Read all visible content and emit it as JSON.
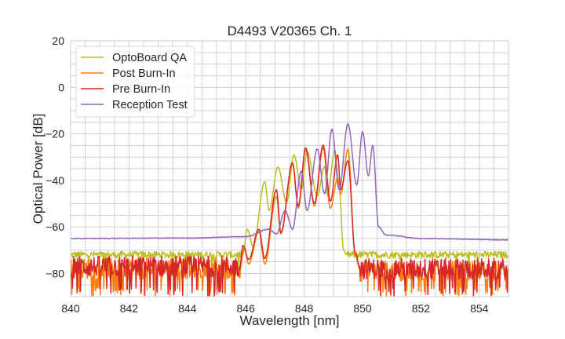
{
  "chart_data": {
    "type": "line",
    "title": "D4493 V20365 Ch. 1",
    "xlabel": "Wavelength [nm]",
    "ylabel": "Optical Power [dB]",
    "xlim": [
      840,
      855
    ],
    "ylim": [
      -90,
      20
    ],
    "xticks": [
      840,
      842,
      844,
      846,
      848,
      850,
      852,
      854
    ],
    "yticks": [
      20,
      0,
      -20,
      -40,
      -60,
      -80
    ],
    "xtick_labels": [
      "840",
      "842",
      "844",
      "846",
      "848",
      "850",
      "852",
      "854"
    ],
    "ytick_labels": [
      "20",
      "0",
      "−20",
      "−40",
      "−60",
      "−80"
    ],
    "grid": true,
    "minor_grid_step": {
      "x": 0.5,
      "y": 5
    },
    "legend_position": "top-left",
    "series": [
      {
        "name": "OptoBoard QA",
        "color": "#bcbd22",
        "points": [
          [
            840,
            -72
          ],
          [
            845.9,
            -72
          ],
          [
            846.05,
            -61
          ],
          [
            846.25,
            -68.5
          ],
          [
            846.65,
            -40.6
          ],
          [
            846.8,
            -53
          ],
          [
            847.1,
            -34.3
          ],
          [
            847.4,
            -49.4
          ],
          [
            847.65,
            -29
          ],
          [
            847.9,
            -44
          ],
          [
            848.1,
            -27.5
          ],
          [
            848.45,
            -46.7
          ],
          [
            848.7,
            -34
          ],
          [
            848.8,
            -46.6
          ],
          [
            849.05,
            -27
          ],
          [
            849.2,
            -43
          ],
          [
            849.35,
            -70
          ],
          [
            849.45,
            -72
          ],
          [
            855,
            -72
          ]
        ],
        "noise": [
          {
            "from": 840,
            "to": 845.9,
            "level": -72,
            "spread": 3,
            "spike_prob": 0.01,
            "spike_depth": -80
          },
          {
            "from": 849.45,
            "to": 855,
            "level": -72,
            "spread": 3,
            "spike_prob": 0.01,
            "spike_depth": -80
          }
        ]
      },
      {
        "name": "Post Burn-In",
        "color": "#ff7f0e",
        "points": [
          [
            840,
            -78
          ],
          [
            845.8,
            -78
          ],
          [
            845.95,
            -69
          ],
          [
            846.1,
            -76
          ],
          [
            846.45,
            -62
          ],
          [
            846.65,
            -76
          ],
          [
            847.05,
            -47
          ],
          [
            847.2,
            -63
          ],
          [
            847.6,
            -33
          ],
          [
            847.8,
            -52
          ],
          [
            848.05,
            -27
          ],
          [
            848.35,
            -51
          ],
          [
            848.65,
            -26
          ],
          [
            848.9,
            -52
          ],
          [
            849.15,
            -39
          ],
          [
            849.25,
            -46
          ],
          [
            849.5,
            -26.5
          ],
          [
            849.75,
            -72
          ],
          [
            849.9,
            -78
          ],
          [
            855,
            -78
          ]
        ],
        "noise": [
          {
            "from": 840,
            "to": 845.8,
            "level": -78,
            "spread": 9,
            "spike_prob": 0.12,
            "spike_depth": -90
          },
          {
            "from": 849.9,
            "to": 855,
            "level": -79,
            "spread": 9,
            "spike_prob": 0.15,
            "spike_depth": -90
          }
        ]
      },
      {
        "name": "Pre Burn-In",
        "color": "#d62728",
        "points": [
          [
            840,
            -77
          ],
          [
            845.8,
            -77
          ],
          [
            845.9,
            -68
          ],
          [
            846.1,
            -74
          ],
          [
            846.45,
            -61
          ],
          [
            846.65,
            -73.6
          ],
          [
            847.05,
            -44
          ],
          [
            847.2,
            -62.5
          ],
          [
            847.6,
            -32.5
          ],
          [
            847.8,
            -51
          ],
          [
            848.05,
            -26
          ],
          [
            848.35,
            -50
          ],
          [
            848.65,
            -24.8
          ],
          [
            848.9,
            -49
          ],
          [
            849.15,
            -29
          ],
          [
            849.25,
            -44
          ],
          [
            849.5,
            -31.5
          ],
          [
            849.75,
            -71
          ],
          [
            849.9,
            -77
          ],
          [
            855,
            -77
          ]
        ],
        "noise": [
          {
            "from": 840,
            "to": 845.8,
            "level": -77,
            "spread": 9,
            "spike_prob": 0.12,
            "spike_depth": -90
          },
          {
            "from": 849.9,
            "to": 855,
            "level": -78,
            "spread": 9,
            "spike_prob": 0.14,
            "spike_depth": -90
          }
        ]
      },
      {
        "name": "Reception Test",
        "color": "#9467bd",
        "points": [
          [
            840,
            -65
          ],
          [
            844,
            -64.8
          ],
          [
            846,
            -64.2
          ],
          [
            846.8,
            -61
          ],
          [
            847.05,
            -63
          ],
          [
            847.35,
            -53
          ],
          [
            847.6,
            -61
          ],
          [
            847.9,
            -36
          ],
          [
            848.1,
            -53
          ],
          [
            848.45,
            -26.5
          ],
          [
            848.7,
            -45.7
          ],
          [
            848.95,
            -18
          ],
          [
            849.2,
            -44
          ],
          [
            849.5,
            -15.7
          ],
          [
            849.8,
            -42
          ],
          [
            850.0,
            -19
          ],
          [
            850.2,
            -38
          ],
          [
            850.35,
            -25
          ],
          [
            850.55,
            -60
          ],
          [
            850.8,
            -63.5
          ],
          [
            852,
            -65
          ],
          [
            855,
            -65.6
          ]
        ],
        "noise": []
      }
    ]
  }
}
